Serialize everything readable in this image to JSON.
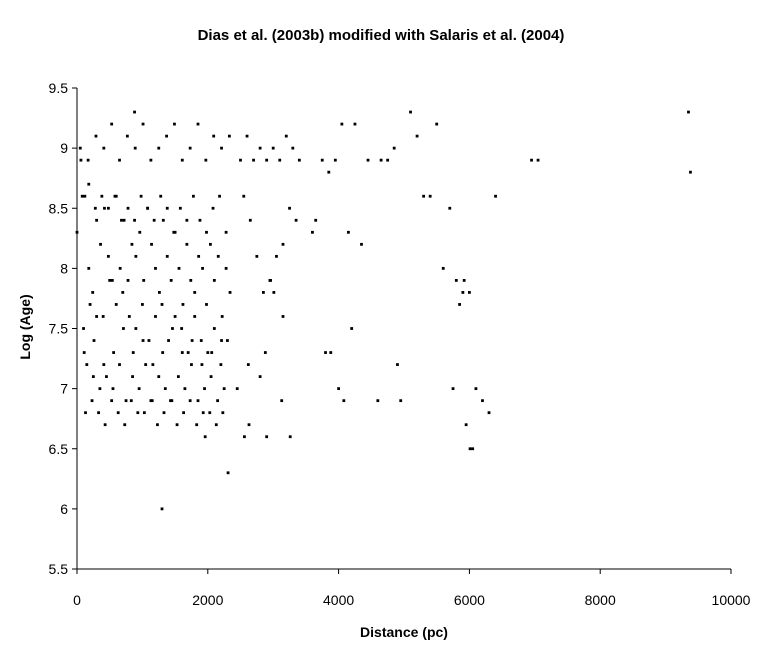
{
  "chart_data": {
    "type": "scatter",
    "title": "Dias et al. (2003b) modified with Salaris et al. (2004)",
    "xlabel": "Distance (pc)",
    "ylabel": "Log (Age)",
    "xlim": [
      0,
      10000
    ],
    "ylim": [
      5.5,
      9.5
    ],
    "xticks": [
      "0",
      "2000",
      "4000",
      "6000",
      "8000",
      "10000"
    ],
    "yticks": [
      "5.5",
      "6",
      "6.5",
      "7",
      "7.5",
      "8",
      "8.5",
      "9",
      "9.5"
    ],
    "grid": false,
    "legend": "none",
    "marker_color": "#000000",
    "series": [
      {
        "x": [
          0,
          60,
          120,
          180,
          240,
          300,
          360,
          420,
          480,
          540,
          600,
          660,
          720,
          780,
          840,
          900,
          960,
          1020,
          1080,
          1140,
          1200,
          1260,
          1320,
          1380,
          1440,
          1500,
          1560,
          1620,
          1680,
          1740,
          1800,
          1860,
          1920,
          1980,
          2040,
          2100,
          2160,
          2220,
          2280,
          2340,
          100,
          200,
          300,
          400,
          500,
          600,
          700,
          800,
          900,
          1000,
          1100,
          1200,
          1300,
          1400,
          1500,
          1600,
          1700,
          1800,
          1900,
          2000,
          2100,
          2200,
          2300,
          150,
          250,
          350,
          450,
          550,
          650,
          750,
          850,
          950,
          1050,
          1150,
          1250,
          1350,
          1450,
          1550,
          1650,
          1750,
          1850,
          1950,
          2050,
          2150,
          2250,
          80,
          180,
          280,
          380,
          480,
          580,
          680,
          780,
          880,
          980,
          1080,
          1180,
          1280,
          1380,
          1480,
          1580,
          1680,
          1780,
          1880,
          1980,
          2080,
          2180,
          2280,
          130,
          230,
          330,
          430,
          530,
          630,
          730,
          830,
          930,
          1030,
          1130,
          1230,
          1330,
          1430,
          1530,
          1630,
          1730,
          1830,
          1930,
          2030,
          2130,
          2230,
          50,
          170,
          290,
          410,
          530,
          650,
          770,
          890,
          1010,
          1130,
          1250,
          1370,
          1490,
          1610,
          1730,
          1850,
          1970,
          2090,
          2210,
          2330,
          110,
          260,
          410,
          560,
          710,
          860,
          1010,
          1160,
          1310,
          1460,
          1610,
          1760,
          1910,
          2060,
          2210,
          2500,
          2600,
          2700,
          2800,
          2900,
          3000,
          3100,
          3200,
          3300,
          3400,
          2550,
          2650,
          2750,
          2850,
          2950,
          3050,
          3150,
          3250,
          3350,
          2620,
          2880,
          3010,
          2960,
          3130,
          3650,
          3750,
          3850,
          3950,
          4050,
          4150,
          4250,
          4350,
          4450,
          4650,
          4750,
          4850,
          4950,
          3600,
          3800,
          4000,
          4200,
          4600,
          4900,
          5100,
          5200,
          5300,
          5400,
          5500,
          5600,
          5700,
          5800,
          5900,
          6000,
          6100,
          6200,
          6300,
          6400,
          5750,
          5850,
          5950,
          6050,
          6950,
          7050,
          9350,
          9380,
          880,
          1300,
          2310,
          2560,
          2630,
          2900,
          3260,
          3880,
          4080,
          5920,
          6010,
          1960,
          2450,
          2800,
          3150
        ],
        "y": [
          8.3,
          8.9,
          8.6,
          8.0,
          7.8,
          8.4,
          8.2,
          8.5,
          8.1,
          7.9,
          8.6,
          8.0,
          8.4,
          7.9,
          8.2,
          8.1,
          8.3,
          7.9,
          8.5,
          8.2,
          8.0,
          7.8,
          8.4,
          8.1,
          7.9,
          8.3,
          8.0,
          7.7,
          8.2,
          7.9,
          7.8,
          8.1,
          8.0,
          7.7,
          8.2,
          7.9,
          8.1,
          7.6,
          8.0,
          7.8,
          7.5,
          7.7,
          7.6,
          7.6,
          7.9,
          7.7,
          7.8,
          7.6,
          7.5,
          7.7,
          7.4,
          7.6,
          7.7,
          7.4,
          7.6,
          7.5,
          7.3,
          7.6,
          7.4,
          7.3,
          7.5,
          7.2,
          7.4,
          7.2,
          7.1,
          7.0,
          7.1,
          7.0,
          7.2,
          6.9,
          7.1,
          7.0,
          7.2,
          6.9,
          7.1,
          7.0,
          6.9,
          7.1,
          7.0,
          7.2,
          6.9,
          7.0,
          7.1,
          6.9,
          7.0,
          8.6,
          8.7,
          8.5,
          8.6,
          8.5,
          8.6,
          8.4,
          8.5,
          8.4,
          8.6,
          8.5,
          8.4,
          8.6,
          8.5,
          8.3,
          8.5,
          8.4,
          8.6,
          8.4,
          8.3,
          8.5,
          8.6,
          8.3,
          6.8,
          6.9,
          6.8,
          6.7,
          6.9,
          6.8,
          6.7,
          6.9,
          6.8,
          6.8,
          6.9,
          6.7,
          6.8,
          6.9,
          6.7,
          6.8,
          6.9,
          6.7,
          6.8,
          6.8,
          6.7,
          6.8,
          9.0,
          8.9,
          9.1,
          9.0,
          9.2,
          8.9,
          9.1,
          9.0,
          9.2,
          8.9,
          9.0,
          9.1,
          9.2,
          8.9,
          9.0,
          9.2,
          8.9,
          9.1,
          9.0,
          9.1,
          7.3,
          7.4,
          7.2,
          7.3,
          7.5,
          7.3,
          7.4,
          7.2,
          7.3,
          7.5,
          7.3,
          7.4,
          7.2,
          7.3,
          7.4,
          8.9,
          9.1,
          8.9,
          9.0,
          8.9,
          9.0,
          8.9,
          9.1,
          9.0,
          8.9,
          8.6,
          8.4,
          8.1,
          7.8,
          7.9,
          8.1,
          7.6,
          8.5,
          8.4,
          7.2,
          7.3,
          7.8,
          7.9,
          6.9,
          8.4,
          8.9,
          8.8,
          8.9,
          9.2,
          8.3,
          9.2,
          8.2,
          8.9,
          8.9,
          8.9,
          9.0,
          6.9,
          8.3,
          7.3,
          7.0,
          7.5,
          6.9,
          7.2,
          9.3,
          9.1,
          8.6,
          8.6,
          9.2,
          8.0,
          8.5,
          7.9,
          7.8,
          7.8,
          7.0,
          6.9,
          6.8,
          8.6,
          7.0,
          7.7,
          6.7,
          6.5,
          8.9,
          8.9,
          9.3,
          8.8,
          9.3,
          6.0,
          6.3,
          6.6,
          6.7,
          6.6,
          6.6,
          7.3,
          6.9,
          7.9,
          6.5,
          6.6,
          7.0,
          7.1,
          8.2
        ]
      }
    ]
  }
}
